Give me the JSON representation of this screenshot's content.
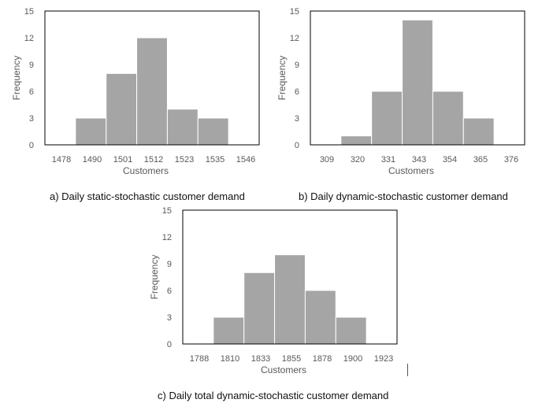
{
  "colors": {
    "bar": "#a5a5a5",
    "bar_edge": "#ffffff",
    "frame": "#000000",
    "text": "#595959"
  },
  "chart_data": [
    {
      "type": "bar",
      "xlabel": "Customers",
      "ylabel": "Frequency",
      "ylim": [
        0,
        15
      ],
      "yticks": [
        "0",
        "3",
        "6",
        "9",
        "12",
        "15"
      ],
      "categories": [
        "1478",
        "1490",
        "1501",
        "1512",
        "1523",
        "1535",
        "1546"
      ],
      "values": [
        0,
        3,
        8,
        12,
        4,
        3,
        0
      ],
      "grid": false,
      "caption": "a) Daily static-stochastic customer demand"
    },
    {
      "type": "bar",
      "xlabel": "Customers",
      "ylabel": "Frequency",
      "ylim": [
        0,
        15
      ],
      "yticks": [
        "0",
        "3",
        "6",
        "9",
        "12",
        "15"
      ],
      "categories": [
        "309",
        "320",
        "331",
        "343",
        "354",
        "365",
        "376"
      ],
      "values": [
        0,
        1,
        6,
        14,
        6,
        3,
        0
      ],
      "grid": false,
      "caption": "b) Daily dynamic-stochastic customer demand"
    },
    {
      "type": "bar",
      "xlabel": "Customers",
      "ylabel": "Frequency",
      "ylim": [
        0,
        15
      ],
      "yticks": [
        "0",
        "3",
        "6",
        "9",
        "12",
        "15"
      ],
      "categories": [
        "1788",
        "1810",
        "1833",
        "1855",
        "1878",
        "1900",
        "1923"
      ],
      "values": [
        0,
        3,
        8,
        10,
        6,
        3,
        0
      ],
      "grid": false,
      "caption": "c) Daily total dynamic-stochastic customer demand"
    }
  ]
}
